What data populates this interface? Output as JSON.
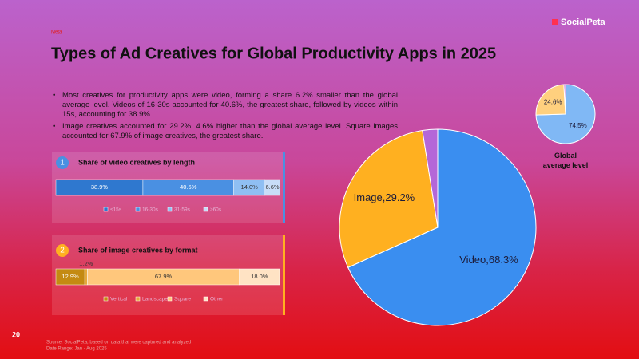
{
  "slide": {
    "tag": "Meta",
    "logo": "SocialPeta",
    "title": "Types of Ad Creatives for Global Productivity Apps in 2025",
    "bullets": [
      "Most creatives for productivity apps were video, forming a share 6.2% smaller than the global average level. Videos of 16-30s accounted for 40.6%, the greatest share, followed by videos within 15s, accounting for 38.9%.",
      "Image creatives accounted for 29.2%, 4.6% higher than the global average level. Square images accounted for 67.9% of image creatives, the greatest share."
    ],
    "page_number": "20",
    "source": "Source: SocialPeta, based on data that were captured and analyzed",
    "date_range": "Date Range: Jan - Aug 2025"
  },
  "chart_data": [
    {
      "type": "stacked_bar",
      "number": "1",
      "title": "Share of video creatives by length",
      "series": [
        {
          "name": "≤15s",
          "color": "#2f78cf",
          "values": [
            38.9
          ],
          "value_labels": [
            "38.9%"
          ]
        },
        {
          "name": "16-30s",
          "color": "#4a90e2",
          "values": [
            40.6
          ],
          "value_labels": [
            "40.6%"
          ]
        },
        {
          "name": "31-59s",
          "color": "#8fbff3",
          "values": [
            14.0
          ],
          "value_labels": [
            "14.0%"
          ]
        },
        {
          "name": "≥60s",
          "color": "#c8ddf8",
          "values": [
            6.6
          ],
          "value_labels": [
            "6.6%"
          ]
        }
      ]
    },
    {
      "type": "stacked_bar",
      "number": "2",
      "title": "Share of image creatives by format",
      "series": [
        {
          "name": "Vertical",
          "color": "#c48a12",
          "values": [
            12.9
          ],
          "value_labels": [
            "12.9%"
          ]
        },
        {
          "name": "Landscape",
          "color": "#e6a83a",
          "values": [
            1.2
          ],
          "value_labels": [
            "1.2%"
          ]
        },
        {
          "name": "Square",
          "color": "#ffc77c",
          "values": [
            67.9
          ],
          "value_labels": [
            "67.9%"
          ]
        },
        {
          "name": "Other",
          "color": "#ffe3c4",
          "values": [
            18.0
          ],
          "value_labels": [
            "18.0%"
          ]
        }
      ]
    },
    {
      "type": "pie",
      "values": [
        68.3,
        29.2,
        2.5
      ],
      "value_labels": [
        "Video,68.3%",
        "Image,29.2%",
        null
      ],
      "colors": [
        "#3a8ef0",
        "#ffb020",
        "#b467d8"
      ]
    },
    {
      "type": "pie",
      "title": "Global average level",
      "values": [
        74.5,
        24.6,
        0.9
      ],
      "value_labels": [
        "74.5%",
        "24.6%",
        null
      ],
      "colors": [
        "#80b8f5",
        "#ffd07e",
        "#b467d8"
      ]
    }
  ]
}
